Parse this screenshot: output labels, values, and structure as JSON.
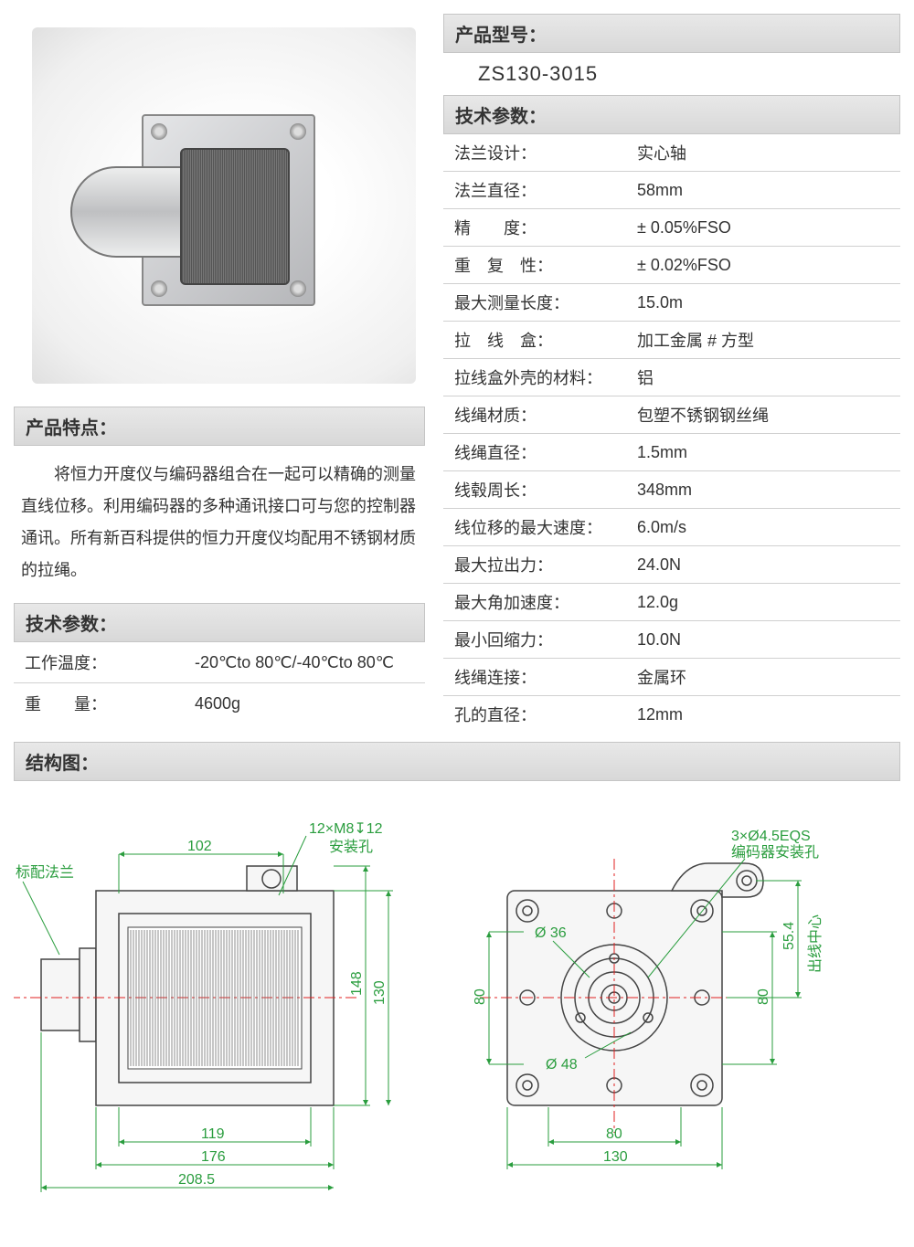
{
  "colors": {
    "header_bg_top": "#e8e8e8",
    "header_bg_bottom": "#d8d8d8",
    "header_border": "#c5c5c5",
    "row_border": "#d0d0d0",
    "dim_green": "#2a9d3e",
    "centerline_red": "#e02020",
    "outline_gray": "#444444",
    "text": "#333333"
  },
  "fonts": {
    "body_pt": 18,
    "header_pt": 20,
    "model_pt": 22,
    "dim_pt": 16
  },
  "left": {
    "features_header": "产品特点：",
    "features_text": "将恒力开度仪与编码器组合在一起可以精确的测量直线位移。利用编码器的多种通讯接口可与您的控制器通讯。所有新百科提供的恒力开度仪均配用不锈钢材质的拉绳。",
    "tech_header": "技术参数：",
    "rows": [
      {
        "label": "工作温度：",
        "value": "-20℃to 80℃/-40℃to 80℃"
      },
      {
        "label": "重　　量：",
        "value": "4600g"
      }
    ]
  },
  "right": {
    "model_header": "产品型号：",
    "model_value": "ZS130-3015",
    "tech_header": "技术参数：",
    "rows": [
      {
        "label": "法兰设计：",
        "value": "实心轴"
      },
      {
        "label": "法兰直径：",
        "value": "58mm"
      },
      {
        "label": "精　　度：",
        "value": "± 0.05%FSO"
      },
      {
        "label": "重　复　性：",
        "value": "± 0.02%FSO"
      },
      {
        "label": "最大测量长度：",
        "value": "15.0m"
      },
      {
        "label": "拉　线　盒：",
        "value": "加工金属 # 方型"
      },
      {
        "label": "拉线盒外壳的材料：",
        "value": "铝"
      },
      {
        "label": "线绳材质：",
        "value": "包塑不锈钢钢丝绳"
      },
      {
        "label": "线绳直径：",
        "value": "1.5mm"
      },
      {
        "label": "线毂周长：",
        "value": "348mm"
      },
      {
        "label": "线位移的最大速度：",
        "value": "6.0m/s"
      },
      {
        "label": "最大拉出力：",
        "value": "24.0N"
      },
      {
        "label": "最大角加速度：",
        "value": "12.0g"
      },
      {
        "label": "最小回缩力：",
        "value": "10.0N"
      },
      {
        "label": "线绳连接：",
        "value": "金属环"
      },
      {
        "label": "孔的直径：",
        "value": "12mm"
      }
    ]
  },
  "structure": {
    "header": "结构图：",
    "labels": {
      "flange": "标配法兰",
      "mount_holes": "12×M8↧12",
      "mount_holes_sub": "安装孔",
      "encoder_holes": "3×Ø4.5EQS",
      "encoder_holes_sub": "编码器安装孔",
      "outlet_center": "出线中心"
    },
    "dims": {
      "top_102": "102",
      "h_148": "148",
      "h_130": "130",
      "h_80": "80",
      "h_80_right": "80",
      "h_55_4": "55.4",
      "w_119": "119",
      "w_176": "176",
      "w_208_5": "208.5",
      "w_80_bottom": "80",
      "w_130_bottom": "130",
      "dia_36": "Ø 36",
      "dia_48": "Ø 48"
    }
  }
}
